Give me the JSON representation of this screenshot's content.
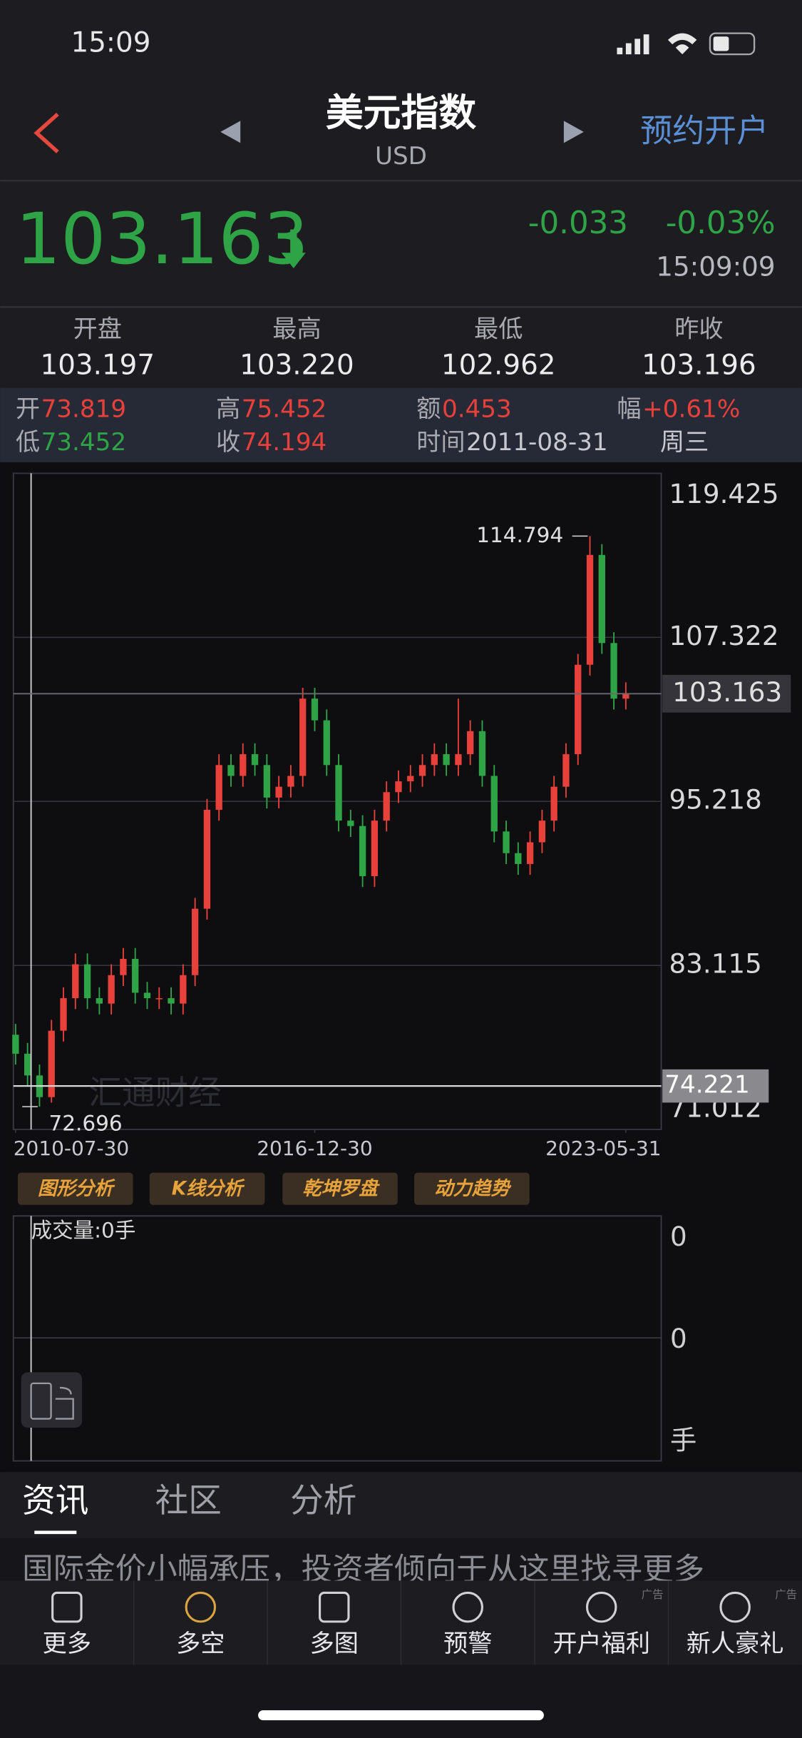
{
  "status_bar": {
    "time": "15:09"
  },
  "header": {
    "title": "美元指数",
    "subtitle": "USD",
    "action": "预约开户"
  },
  "quote": {
    "price": "103.163",
    "change": "-0.033",
    "change_pct": "-0.03%",
    "time": "15:09:09"
  },
  "stats": [
    {
      "label": "开盘",
      "value": "103.197"
    },
    {
      "label": "最高",
      "value": "103.220"
    },
    {
      "label": "最低",
      "value": "102.962"
    },
    {
      "label": "昨收",
      "value": "103.196"
    }
  ],
  "candle_info": {
    "rows": [
      [
        {
          "label": "开",
          "value": "73.819"
        },
        {
          "label": "高",
          "value": "75.452"
        },
        {
          "label": "额",
          "value": "0.453"
        },
        {
          "label": "幅",
          "value": "+0.61%"
        }
      ],
      [
        {
          "label": "低",
          "value": "73.452"
        },
        {
          "label": "收",
          "value": "74.194"
        },
        {
          "label": "时间",
          "value": "2011-08-31"
        }
      ]
    ],
    "weekday": "周三"
  },
  "chart_data": {
    "type": "candlestick",
    "watermark": "汇通财经",
    "up_color": "#e8403a",
    "down_color": "#2fa446",
    "grid": true,
    "ylim": [
      71.012,
      119.425
    ],
    "yticks": [
      119.425,
      107.322,
      95.218,
      83.115,
      71.012
    ],
    "xticks": [
      {
        "value": 0,
        "label": "2010-07-30"
      },
      {
        "value": 25,
        "label": "2016-12-30"
      },
      {
        "value": 51,
        "label": "2023-05-31"
      }
    ],
    "price_line": 103.163,
    "crosshair_price": 74.221,
    "open": [
      78.0,
      76.6,
      75.0,
      73.4,
      78.3,
      80.7,
      83.2,
      80.7,
      80.3,
      82.4,
      83.6,
      81.1,
      80.7,
      80.7,
      80.3,
      82.4,
      87.3,
      94.6,
      97.9,
      97.1,
      98.7,
      97.9,
      95.5,
      96.3,
      97.1,
      102.8,
      101.2,
      97.9,
      93.8,
      93.4,
      89.7,
      93.8,
      95.9,
      96.7,
      97.1,
      97.9,
      98.7,
      97.9,
      98.7,
      100.4,
      97.1,
      93.0,
      91.4,
      90.6,
      92.2,
      93.8,
      96.3,
      98.7,
      105.3,
      113.4,
      106.9,
      102.8
    ],
    "high": [
      78.8,
      77.4,
      75.8,
      79.1,
      81.5,
      84.0,
      84.0,
      81.5,
      83.2,
      84.4,
      84.4,
      81.9,
      81.5,
      81.5,
      83.2,
      88.1,
      95.4,
      98.7,
      98.7,
      99.5,
      99.5,
      98.7,
      97.1,
      97.9,
      103.6,
      103.6,
      102.0,
      98.7,
      94.6,
      94.2,
      94.6,
      96.7,
      97.5,
      97.9,
      98.7,
      99.5,
      99.5,
      102.8,
      101.2,
      101.2,
      97.9,
      93.8,
      92.2,
      93.0,
      94.6,
      97.1,
      99.5,
      106.1,
      114.794,
      114.2,
      107.7,
      104.0
    ],
    "low": [
      75.8,
      74.2,
      72.696,
      73.0,
      77.5,
      79.9,
      79.9,
      79.5,
      79.5,
      81.6,
      80.3,
      79.9,
      79.9,
      79.5,
      79.5,
      81.6,
      86.5,
      93.8,
      96.3,
      96.3,
      97.1,
      94.7,
      94.7,
      95.5,
      96.3,
      100.4,
      97.1,
      93.0,
      92.6,
      88.9,
      88.9,
      93.0,
      95.1,
      95.9,
      96.3,
      97.1,
      97.1,
      97.1,
      97.9,
      96.3,
      92.2,
      90.6,
      89.8,
      89.8,
      91.4,
      93.0,
      95.5,
      97.9,
      104.5,
      106.1,
      102.0,
      102.0
    ],
    "close": [
      76.6,
      75.0,
      73.4,
      78.3,
      80.7,
      83.2,
      80.7,
      80.3,
      82.4,
      83.6,
      81.1,
      80.7,
      80.7,
      80.3,
      82.4,
      87.3,
      94.6,
      97.9,
      97.1,
      98.7,
      97.9,
      95.5,
      96.3,
      97.1,
      102.8,
      101.2,
      97.9,
      93.8,
      93.4,
      89.7,
      93.8,
      95.9,
      96.7,
      97.1,
      97.9,
      98.7,
      97.9,
      98.7,
      100.4,
      97.1,
      93.0,
      91.4,
      90.6,
      92.2,
      93.8,
      96.3,
      98.7,
      105.3,
      113.4,
      106.9,
      102.8,
      103.163
    ]
  },
  "tools": [
    "图形分析",
    "K线分析",
    "乾坤罗盘",
    "动力趋势"
  ],
  "volume_panel": {
    "label": "成交量:0手",
    "axis_labels": [
      "0",
      "0",
      "手"
    ]
  },
  "tabs": [
    "资讯",
    "社区",
    "分析"
  ],
  "news": {
    "headline": "国际金价小幅承压，投资者倾向于从这里找寻更多"
  },
  "bottom_nav": {
    "items": [
      "更多",
      "多空",
      "多图",
      "预警",
      "开户福利",
      "新人豪礼"
    ],
    "ad_tag": "广告"
  }
}
